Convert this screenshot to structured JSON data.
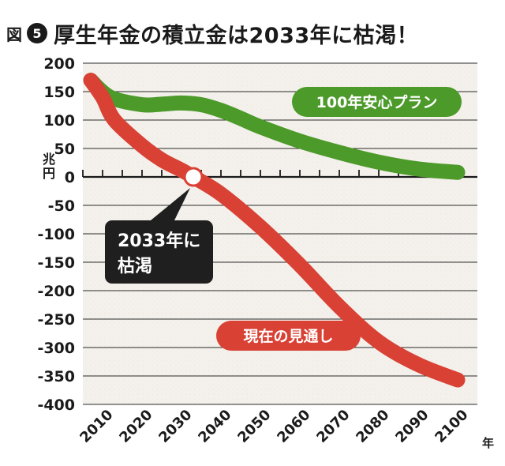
{
  "figure": {
    "label": "図",
    "number": "5",
    "title": "厚生年金の積立金は2033年に枯渇！"
  },
  "chart_data": {
    "type": "line",
    "title": "厚生年金の積立金は2033年に枯渇！",
    "xlabel": "年",
    "ylabel": "兆円",
    "x_ticks": [
      "2010",
      "2020",
      "2030",
      "2040",
      "2050",
      "2060",
      "2070",
      "2080",
      "2090",
      "2100"
    ],
    "y_ticks": [
      200,
      150,
      100,
      50,
      0,
      -50,
      -100,
      -150,
      -200,
      -250,
      -300,
      -350,
      -400
    ],
    "xlim": [
      2005,
      2105
    ],
    "ylim": [
      -400,
      200
    ],
    "grid": true,
    "series": [
      {
        "name": "100年安心プラン",
        "color": "#4c9a2a",
        "x": [
          2007,
          2012,
          2020,
          2025,
          2030,
          2035,
          2040,
          2045,
          2050,
          2060,
          2070,
          2080,
          2090,
          2100
        ],
        "values": [
          170,
          140,
          127,
          128,
          130,
          127,
          117,
          103,
          88,
          63,
          43,
          26,
          14,
          8
        ]
      },
      {
        "name": "現在の見通し",
        "color": "#d94135",
        "x": [
          2007,
          2010,
          2013,
          2020,
          2025,
          2030,
          2033,
          2040,
          2050,
          2060,
          2070,
          2080,
          2090,
          2100
        ],
        "values": [
          170,
          140,
          100,
          55,
          30,
          12,
          0,
          -30,
          -88,
          -155,
          -228,
          -290,
          -330,
          -357
        ]
      }
    ],
    "annotations": [
      {
        "text": "100年安心プラン",
        "color": "#4c9a2a"
      },
      {
        "text": "現在の見通し",
        "color": "#d94135"
      },
      {
        "text_line1": "2033年に",
        "text_line2": "枯渇",
        "x": 2033,
        "y": 0
      }
    ]
  }
}
